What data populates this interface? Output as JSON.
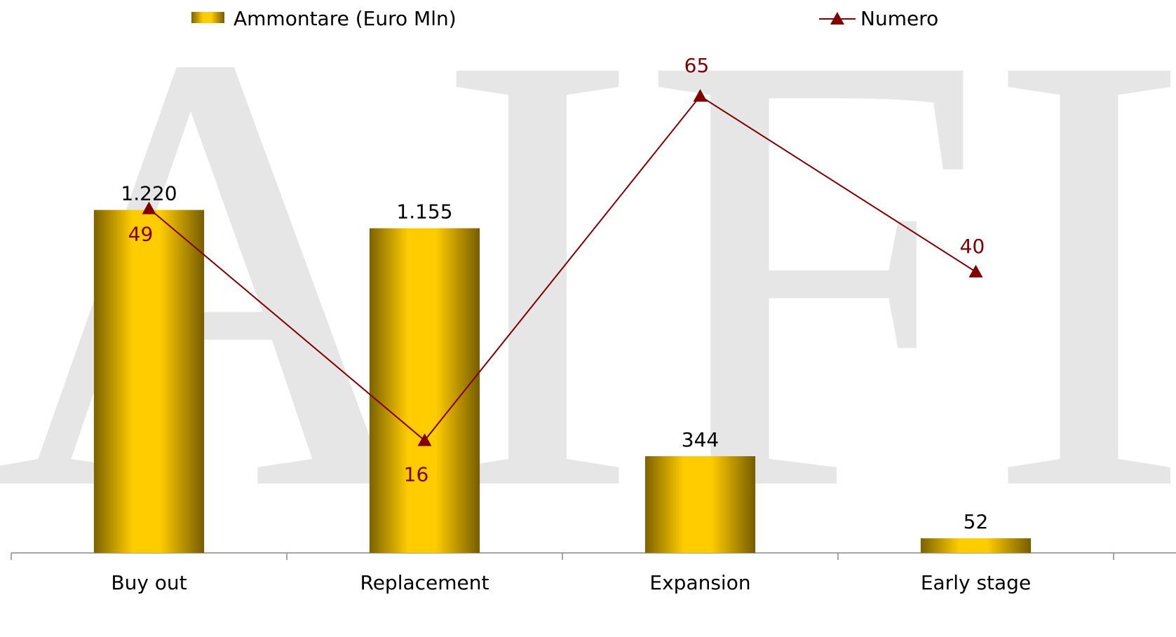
{
  "chart_data": {
    "type": "bar",
    "watermark": "AIFI",
    "categories": [
      "Buy out",
      "Replacement",
      "Expansion",
      "Early stage"
    ],
    "series": [
      {
        "name": "Ammontare (Euro Mln)",
        "type": "bar",
        "color": "#ffcc00",
        "values": [
          1220,
          1155,
          344,
          52
        ],
        "value_labels": [
          "1.220",
          "1.155",
          "344",
          "52"
        ]
      },
      {
        "name": "Numero",
        "type": "line",
        "axis": "y2",
        "color": "#800000",
        "values": [
          49,
          16,
          65,
          40
        ]
      }
    ],
    "ylim": [
      0,
      1750
    ],
    "y2lim": [
      0,
      70
    ],
    "grid": false,
    "legend": "top"
  }
}
